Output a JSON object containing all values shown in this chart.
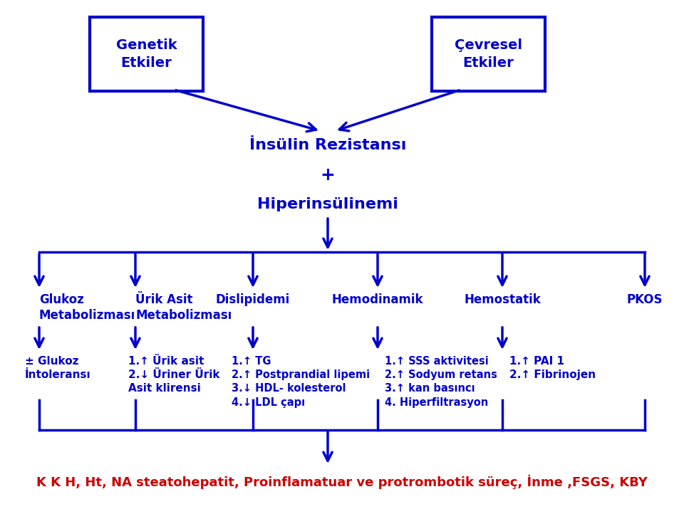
{
  "bg_color": "#ffffff",
  "arrow_color": "#0000cc",
  "text_color": "#0000cc",
  "red_text_color": "#cc0000",
  "title1": "İnsülin Rezistansı",
  "title2": "+",
  "title3": "Hiperinsülinemi",
  "box1_text": "Genetik\nEtkiler",
  "box2_text": "Çevresel\nEtkiler",
  "col_labels": [
    "Glukoz\nMetabolizması",
    "Ürik Asit\nMetabolizması",
    "Dislipidemi",
    "Hemodinamik",
    "Hemostatik",
    "PKOS"
  ],
  "col1_sub": "± Glukoz\nİntoleransı",
  "col2_sub": "1.↑ Ürik asit\n2.↓ Üriner Ürik\nAsit klirensi",
  "col3_sub": "1.↑ TG\n2.↑ Postprandial lipemi\n3.↓ HDL- kolesterol\n4.↓ LDL çapı",
  "col4_sub": "1.↑ SSS aktivitesi\n2.↑ Sodyum retans\n3.↑ kan basıncı\n4. Hiperfiltrasyon",
  "col5_sub": "1.↑ PAI 1\n2.↑ Fibrinojen",
  "col6_sub": "",
  "bottom_text": "K K H, Ht, NA steatohepatit, Proinflamatuar ve protrombotik süreç, İnme ,FSGS, KBY"
}
